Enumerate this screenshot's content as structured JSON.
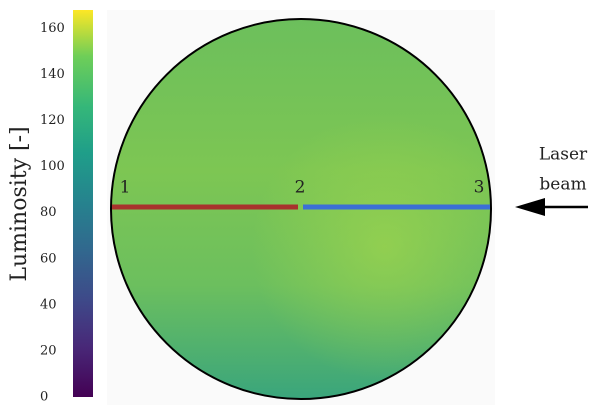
{
  "chart_data": {
    "type": "image",
    "colorbar_label": "Luminosity [-]",
    "ylim": [
      0,
      168
    ],
    "yticks": [
      0,
      20,
      40,
      60,
      80,
      100,
      120,
      140,
      160
    ],
    "point_labels": [
      "1",
      "2",
      "3"
    ],
    "segment_colors": [
      "#a8322d",
      "#3b6fd6"
    ],
    "annotation": [
      "Laser",
      "beam"
    ]
  }
}
